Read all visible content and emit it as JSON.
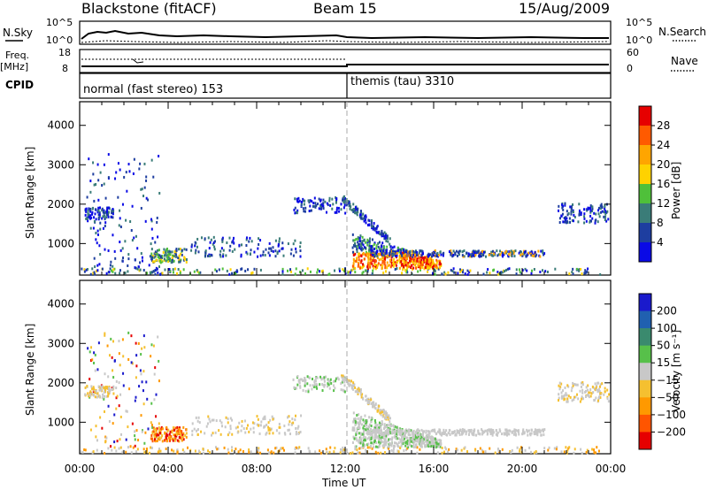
{
  "header": {
    "station": "Blackstone (fitACF)",
    "beam": "Beam 15",
    "date": "15/Aug/2009"
  },
  "top_panels": {
    "nsky_label": "N.Sky",
    "nsky_ticks": [
      "10^5",
      "10^0"
    ],
    "nsearch_label": "N.Search",
    "nsearch_ticks": [
      "10^5",
      "10^0"
    ],
    "freq_label": "Freq.",
    "freq_unit": "[MHz]",
    "freq_ticks": [
      "18",
      "8"
    ],
    "nave_label": "Nave",
    "nave_ticks": [
      "60",
      "0"
    ],
    "cpid_label": "CPID",
    "cpid_modes": [
      "normal (fast stereo) 153",
      "themis (tau) 3310"
    ]
  },
  "colors": {
    "scale": [
      "#1a1acc",
      "#2b4fa8",
      "#3a6e8a",
      "#3f8f6a",
      "#57c04a",
      "#c8c8c8",
      "#f5a623",
      "#ff7f00",
      "#ff3300",
      "#e60000"
    ]
  },
  "chart_data": [
    {
      "type": "heatmap",
      "title": "",
      "quantity": "Power",
      "ylabel": "Slant Range [km]",
      "xlabel": "Time UT",
      "x_ticks": [
        "00:00",
        "04:00",
        "08:00",
        "12:00",
        "16:00",
        "20:00",
        "00:00"
      ],
      "y_ticks": [
        1000,
        2000,
        3000,
        4000
      ],
      "ylim": [
        200,
        4600
      ],
      "xlim_hours": [
        0,
        24
      ],
      "colorbar_label": "Power [dB]",
      "colorbar_ticks": [
        "28",
        "24",
        "20",
        "16",
        "12",
        "8",
        "4"
      ],
      "colorbar_colors": [
        "#e60000",
        "#ff5a00",
        "#ffa500",
        "#ffd200",
        "#4fc03a",
        "#3a7c78",
        "#1e3ea0",
        "#0a0ae6"
      ]
    },
    {
      "type": "heatmap",
      "title": "",
      "quantity": "Velocity",
      "ylabel": "Slant Range [km]",
      "xlabel": "Time UT",
      "x_ticks": [
        "00:00",
        "04:00",
        "08:00",
        "12:00",
        "16:00",
        "20:00",
        "00:00"
      ],
      "y_ticks": [
        1000,
        2000,
        3000,
        4000
      ],
      "ylim": [
        200,
        4600
      ],
      "xlim_hours": [
        0,
        24
      ],
      "colorbar_label": "Velocity [m s⁻¹]",
      "colorbar_ticks": [
        "200",
        "100",
        "50",
        "15",
        "−15",
        "−50",
        "−100",
        "−200"
      ],
      "colorbar_colors": [
        "#1a1acc",
        "#2060b0",
        "#3a8a6e",
        "#57c04a",
        "#c8c8c8",
        "#f5c030",
        "#ff9900",
        "#ff5500",
        "#e60000"
      ]
    }
  ]
}
